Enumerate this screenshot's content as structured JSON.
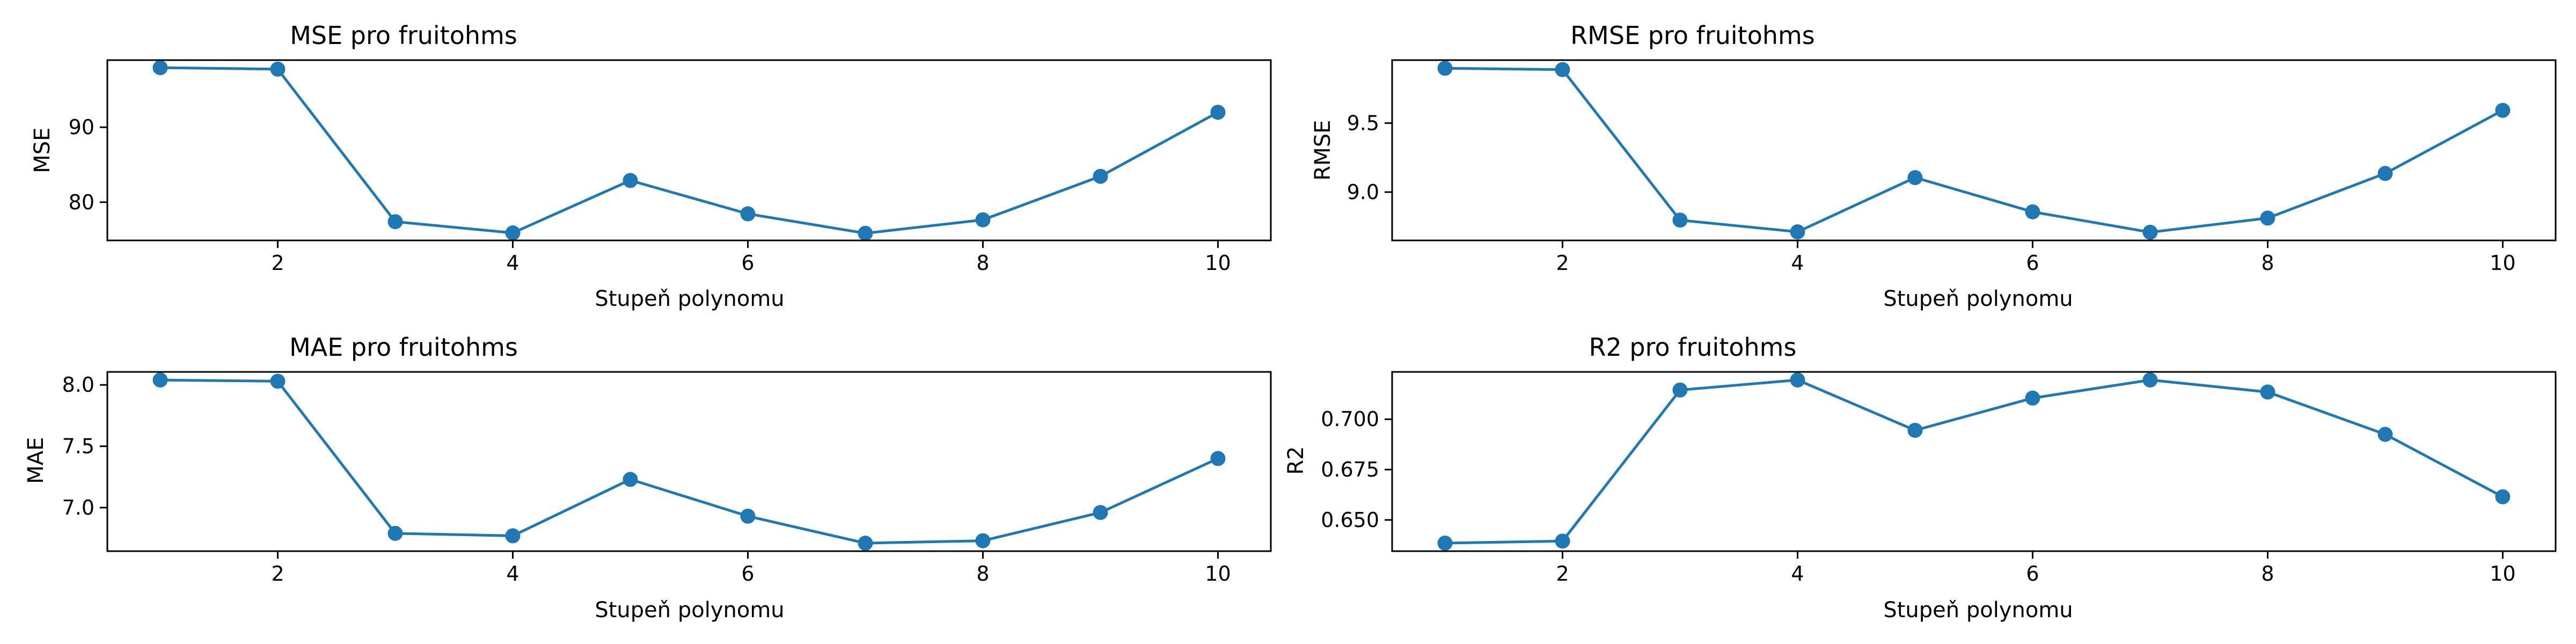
{
  "colors": {
    "series": "#1f77b4",
    "axes": "#000000",
    "background": "#ffffff"
  },
  "chart_data": [
    {
      "type": "line",
      "title": "MSE pro fruitohms",
      "xlabel": "Stupeň polynomu",
      "ylabel": "MSE",
      "x": [
        1,
        2,
        3,
        4,
        5,
        6,
        7,
        8,
        9,
        10
      ],
      "series": [
        {
          "values": [
            97.95,
            97.75,
            77.4,
            75.9,
            82.9,
            78.45,
            75.85,
            77.65,
            83.45,
            92.0
          ]
        }
      ],
      "xlim": [
        0.55,
        10.45
      ],
      "ylim": [
        74.9,
        98.96
      ],
      "xticks": [
        2,
        4,
        6,
        8,
        10
      ],
      "yticks": [
        80,
        90
      ],
      "grid": false,
      "marker": "circle"
    },
    {
      "type": "line",
      "title": "RMSE pro fruitohms",
      "xlabel": "Stupeň polynomu",
      "ylabel": "RMSE",
      "x": [
        1,
        2,
        3,
        4,
        5,
        6,
        7,
        8,
        9,
        10
      ],
      "series": [
        {
          "values": [
            9.897,
            9.887,
            8.797,
            8.712,
            9.105,
            8.857,
            8.709,
            8.812,
            9.135,
            9.592
          ]
        }
      ],
      "xlim": [
        0.55,
        10.45
      ],
      "ylim": [
        8.65,
        9.956
      ],
      "xticks": [
        2,
        4,
        6,
        8,
        10
      ],
      "yticks": [
        9.0,
        9.5
      ],
      "grid": false,
      "marker": "circle"
    },
    {
      "type": "line",
      "title": "MAE pro fruitohms",
      "xlabel": "Stupeň polynomu",
      "ylabel": "MAE",
      "x": [
        1,
        2,
        3,
        4,
        5,
        6,
        7,
        8,
        9,
        10
      ],
      "series": [
        {
          "values": [
            8.04,
            8.03,
            6.79,
            6.77,
            7.23,
            6.93,
            6.71,
            6.73,
            6.96,
            7.4
          ]
        }
      ],
      "xlim": [
        0.55,
        10.45
      ],
      "ylim": [
        6.645,
        8.106
      ],
      "xticks": [
        2,
        4,
        6,
        8,
        10
      ],
      "yticks": [
        7.0,
        7.5,
        8.0
      ],
      "grid": false,
      "marker": "circle"
    },
    {
      "type": "line",
      "title": "R2 pro fruitohms",
      "xlabel": "Stupeň polynomu",
      "ylabel": "R2",
      "x": [
        1,
        2,
        3,
        4,
        5,
        6,
        7,
        8,
        9,
        10
      ],
      "series": [
        {
          "values": [
            0.6385,
            0.6395,
            0.7145,
            0.7195,
            0.6945,
            0.7105,
            0.7195,
            0.7135,
            0.6925,
            0.6615
          ]
        }
      ],
      "xlim": [
        0.55,
        10.45
      ],
      "ylim": [
        0.6345,
        0.7235
      ],
      "xticks": [
        2,
        4,
        6,
        8,
        10
      ],
      "yticks": [
        0.65,
        0.675,
        0.7
      ],
      "grid": false,
      "marker": "circle"
    }
  ]
}
